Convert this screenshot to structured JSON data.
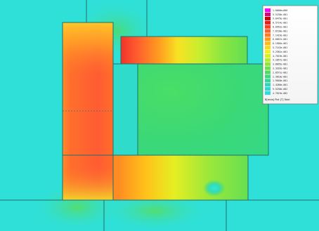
{
  "plot": {
    "background_color": "#2fe0d8",
    "outline_color": "#1f6f6a",
    "regions": [
      {
        "name": "left-pole",
        "fill": "hot"
      },
      {
        "name": "top-arm",
        "fill": "top"
      },
      {
        "name": "bottom-arm",
        "fill": "bottom"
      },
      {
        "name": "center-core",
        "fill": "core"
      }
    ]
  },
  "legend": {
    "caption": "B[tesla] Plot [T] Total",
    "entries": [
      {
        "value": "1.0000e+000",
        "color": "#ff00ff"
      },
      {
        "value": "9.5238e-001",
        "color": "#e2007a"
      },
      {
        "value": "9.0476e-001",
        "color": "#c80000"
      },
      {
        "value": "8.5714e-001",
        "color": "#e81a1a"
      },
      {
        "value": "8.0952e-001",
        "color": "#ff3c1e"
      },
      {
        "value": "7.6190e-001",
        "color": "#ff5f2a"
      },
      {
        "value": "7.1429e-001",
        "color": "#ff7a20"
      },
      {
        "value": "6.6667e-001",
        "color": "#ff9b18"
      },
      {
        "value": "6.1905e-001",
        "color": "#ffbb14"
      },
      {
        "value": "5.7143e-001",
        "color": "#ffd814"
      },
      {
        "value": "5.2381e-001",
        "color": "#f2f01c"
      },
      {
        "value": "4.7619e-001",
        "color": "#d6f020"
      },
      {
        "value": "4.2857e-001",
        "color": "#b6ec2a"
      },
      {
        "value": "3.8095e-001",
        "color": "#8fe636"
      },
      {
        "value": "3.3333e-001",
        "color": "#6ae04a"
      },
      {
        "value": "2.8571e-001",
        "color": "#4edb5e"
      },
      {
        "value": "2.3810e-001",
        "color": "#3bd97c"
      },
      {
        "value": "1.9048e-001",
        "color": "#2fd89a"
      },
      {
        "value": "1.4286e-001",
        "color": "#2bd8b8"
      },
      {
        "value": "9.5238e-002",
        "color": "#2ad9cf"
      },
      {
        "value": "4.7619e-002",
        "color": "#2bdce0"
      }
    ]
  }
}
